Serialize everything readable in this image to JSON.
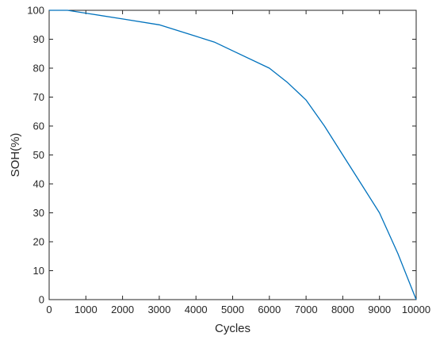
{
  "chart_data": {
    "type": "line",
    "title": "",
    "xlabel": "Cycles",
    "ylabel": "SOH(%)",
    "xlim": [
      0,
      10000
    ],
    "ylim": [
      0,
      100
    ],
    "xticks": [
      0,
      1000,
      2000,
      3000,
      4000,
      5000,
      6000,
      7000,
      8000,
      9000,
      10000
    ],
    "yticks": [
      0,
      10,
      20,
      30,
      40,
      50,
      60,
      70,
      80,
      90,
      100
    ],
    "grid": false,
    "legend": "none",
    "series": [
      {
        "color": "#0072bd",
        "x": [
          0,
          500,
          1000,
          2000,
          3000,
          4000,
          4500,
          5000,
          6000,
          6500,
          7000,
          7500,
          8000,
          8500,
          9000,
          9500,
          10000
        ],
        "y": [
          100,
          100,
          99,
          97,
          95,
          91,
          89,
          86,
          80,
          75,
          69,
          60,
          50,
          40,
          30,
          16,
          0
        ]
      }
    ]
  }
}
